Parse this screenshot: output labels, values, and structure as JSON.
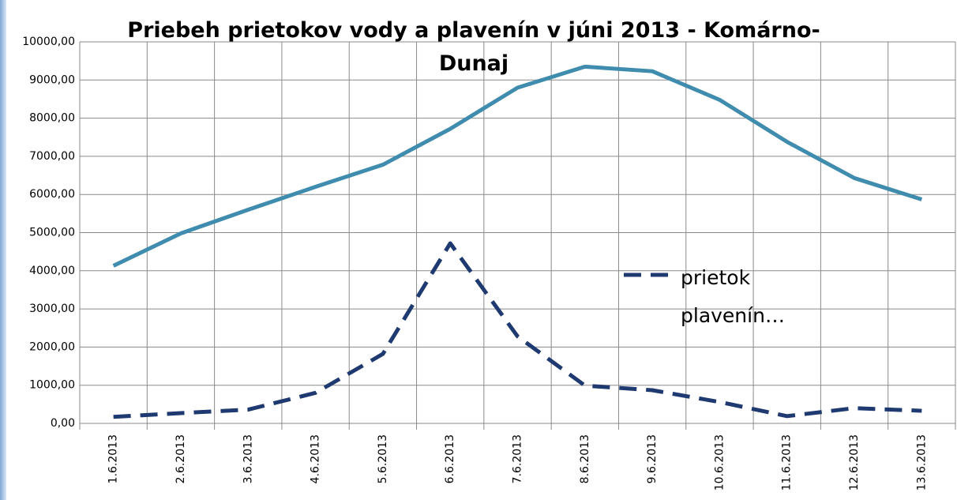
{
  "chart_data": {
    "type": "line",
    "title": "Priebeh prietokov vody a plavenín v júni 2013 - Komárno-Dunaj",
    "categories": [
      "1.6.2013",
      "2.6.2013",
      "3.6.2013",
      "4.6.2013",
      "5.6.2013",
      "6.6.2013",
      "7.6.2013",
      "8.6.2013",
      "9.6.2013",
      "10.6.2013",
      "11.6.2013",
      "12.6.2013",
      "13.6.2013"
    ],
    "series": [
      {
        "color": "#3f8cae",
        "dash": false,
        "values": [
          4130,
          4980,
          5600,
          6200,
          6780,
          7720,
          8800,
          9350,
          9230,
          8480,
          7380,
          6430,
          5870
        ]
      },
      {
        "name": "prietok plavenín…",
        "color": "#1f3a70",
        "dash": true,
        "values": [
          170,
          270,
          360,
          800,
          1820,
          4720,
          2280,
          990,
          870,
          560,
          190,
          400,
          330
        ]
      }
    ],
    "ylim": [
      0,
      10000
    ],
    "yticks": [
      {
        "value": 0,
        "label": "0,00"
      },
      {
        "value": 1000,
        "label": "1000,00"
      },
      {
        "value": 2000,
        "label": "2000,00"
      },
      {
        "value": 3000,
        "label": "3000,00"
      },
      {
        "value": 4000,
        "label": "4000,00"
      },
      {
        "value": 5000,
        "label": "5000,00"
      },
      {
        "value": 6000,
        "label": "6000,00"
      },
      {
        "value": 7000,
        "label": "7000,00"
      },
      {
        "value": 8000,
        "label": "8000,00"
      },
      {
        "value": 9000,
        "label": "9000,00"
      },
      {
        "value": 10000,
        "label": "10000,00"
      }
    ],
    "grid": true
  }
}
